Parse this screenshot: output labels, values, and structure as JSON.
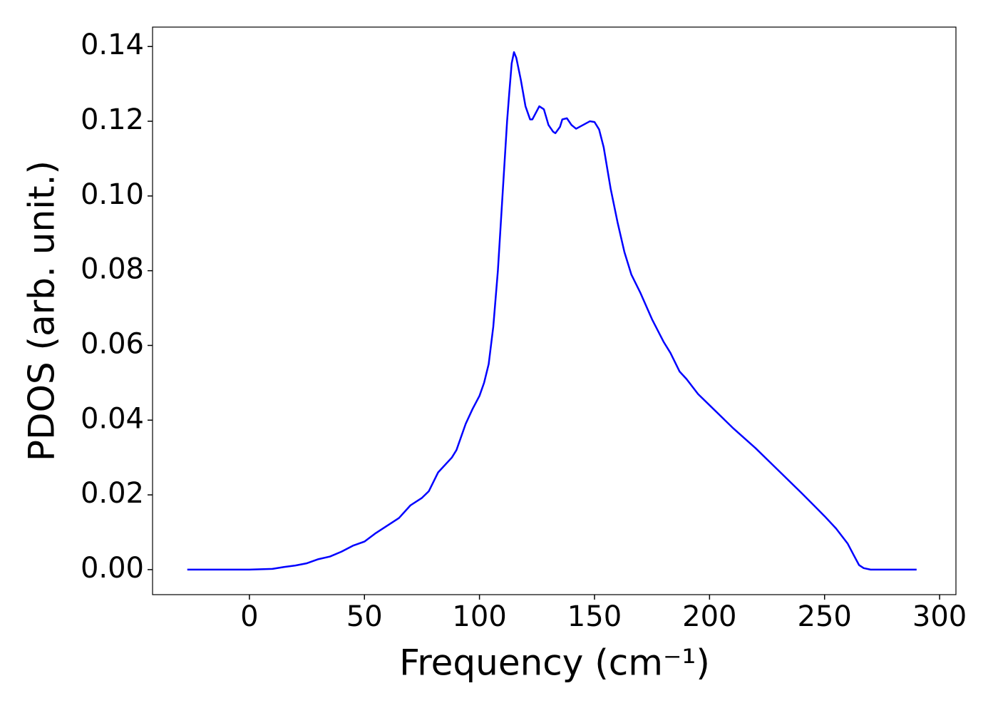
{
  "chart_data": {
    "type": "line",
    "xlabel": "Frequency (cm⁻¹)",
    "ylabel": "PDOS (arb. unit.)",
    "x": [
      -27,
      0,
      10,
      15,
      20,
      25,
      30,
      35,
      40,
      45,
      50,
      55,
      60,
      65,
      70,
      75,
      78,
      82,
      88,
      90,
      94,
      97,
      100,
      102,
      104,
      106,
      108,
      110,
      112,
      113,
      114,
      115,
      116,
      118,
      120,
      122,
      123,
      126,
      128,
      130,
      132,
      133,
      135,
      136,
      138,
      140,
      142,
      145,
      148,
      150,
      152,
      154,
      157,
      160,
      163,
      166,
      170,
      175,
      180,
      183,
      187,
      190,
      195,
      200,
      205,
      210,
      220,
      230,
      240,
      250,
      255,
      260,
      263,
      265,
      267,
      270,
      290
    ],
    "series": [
      {
        "name": "PDOS",
        "color": "#0000ff",
        "values": [
          0,
          0,
          0.0002,
          0.0007,
          0.0011,
          0.0017,
          0.0028,
          0.0035,
          0.0048,
          0.0064,
          0.0075,
          0.0098,
          0.0118,
          0.0138,
          0.0172,
          0.0192,
          0.021,
          0.026,
          0.03,
          0.032,
          0.039,
          0.043,
          0.0465,
          0.05,
          0.055,
          0.065,
          0.08,
          0.1,
          0.12,
          0.128,
          0.1355,
          0.1385,
          0.137,
          0.131,
          0.124,
          0.1205,
          0.1205,
          0.124,
          0.1232,
          0.119,
          0.1172,
          0.1168,
          0.1185,
          0.1205,
          0.1208,
          0.119,
          0.118,
          0.119,
          0.12,
          0.1198,
          0.1178,
          0.113,
          0.102,
          0.093,
          0.085,
          0.079,
          0.074,
          0.067,
          0.061,
          0.058,
          0.053,
          0.051,
          0.047,
          0.044,
          0.041,
          0.038,
          0.0325,
          0.0265,
          0.0205,
          0.0143,
          0.011,
          0.007,
          0.0035,
          0.0012,
          0.0004,
          0,
          0
        ]
      }
    ],
    "xlim": [
      -42.1,
      307.1
    ],
    "ylim": [
      -0.0067,
      0.1452
    ],
    "xticks": [
      0,
      50,
      100,
      150,
      200,
      250,
      300
    ],
    "yticks": [
      {
        "value": 0,
        "label": "0.00"
      },
      {
        "value": 0.02,
        "label": "0.02"
      },
      {
        "value": 0.04,
        "label": "0.04"
      },
      {
        "value": 0.06,
        "label": "0.06"
      },
      {
        "value": 0.08,
        "label": "0.08"
      },
      {
        "value": 0.1,
        "label": "0.10"
      },
      {
        "value": 0.12,
        "label": "0.12"
      },
      {
        "value": 0.14,
        "label": "0.14"
      }
    ],
    "grid": false
  }
}
